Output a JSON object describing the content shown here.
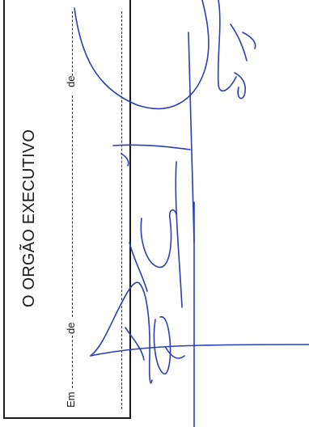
{
  "stamp": {
    "title": "O ORGÃO EXECUTIVO",
    "em_label": "Em",
    "de_label_1": "de",
    "de_label_2": "de"
  },
  "signature": {
    "ink_color": "#2b3fb5"
  }
}
